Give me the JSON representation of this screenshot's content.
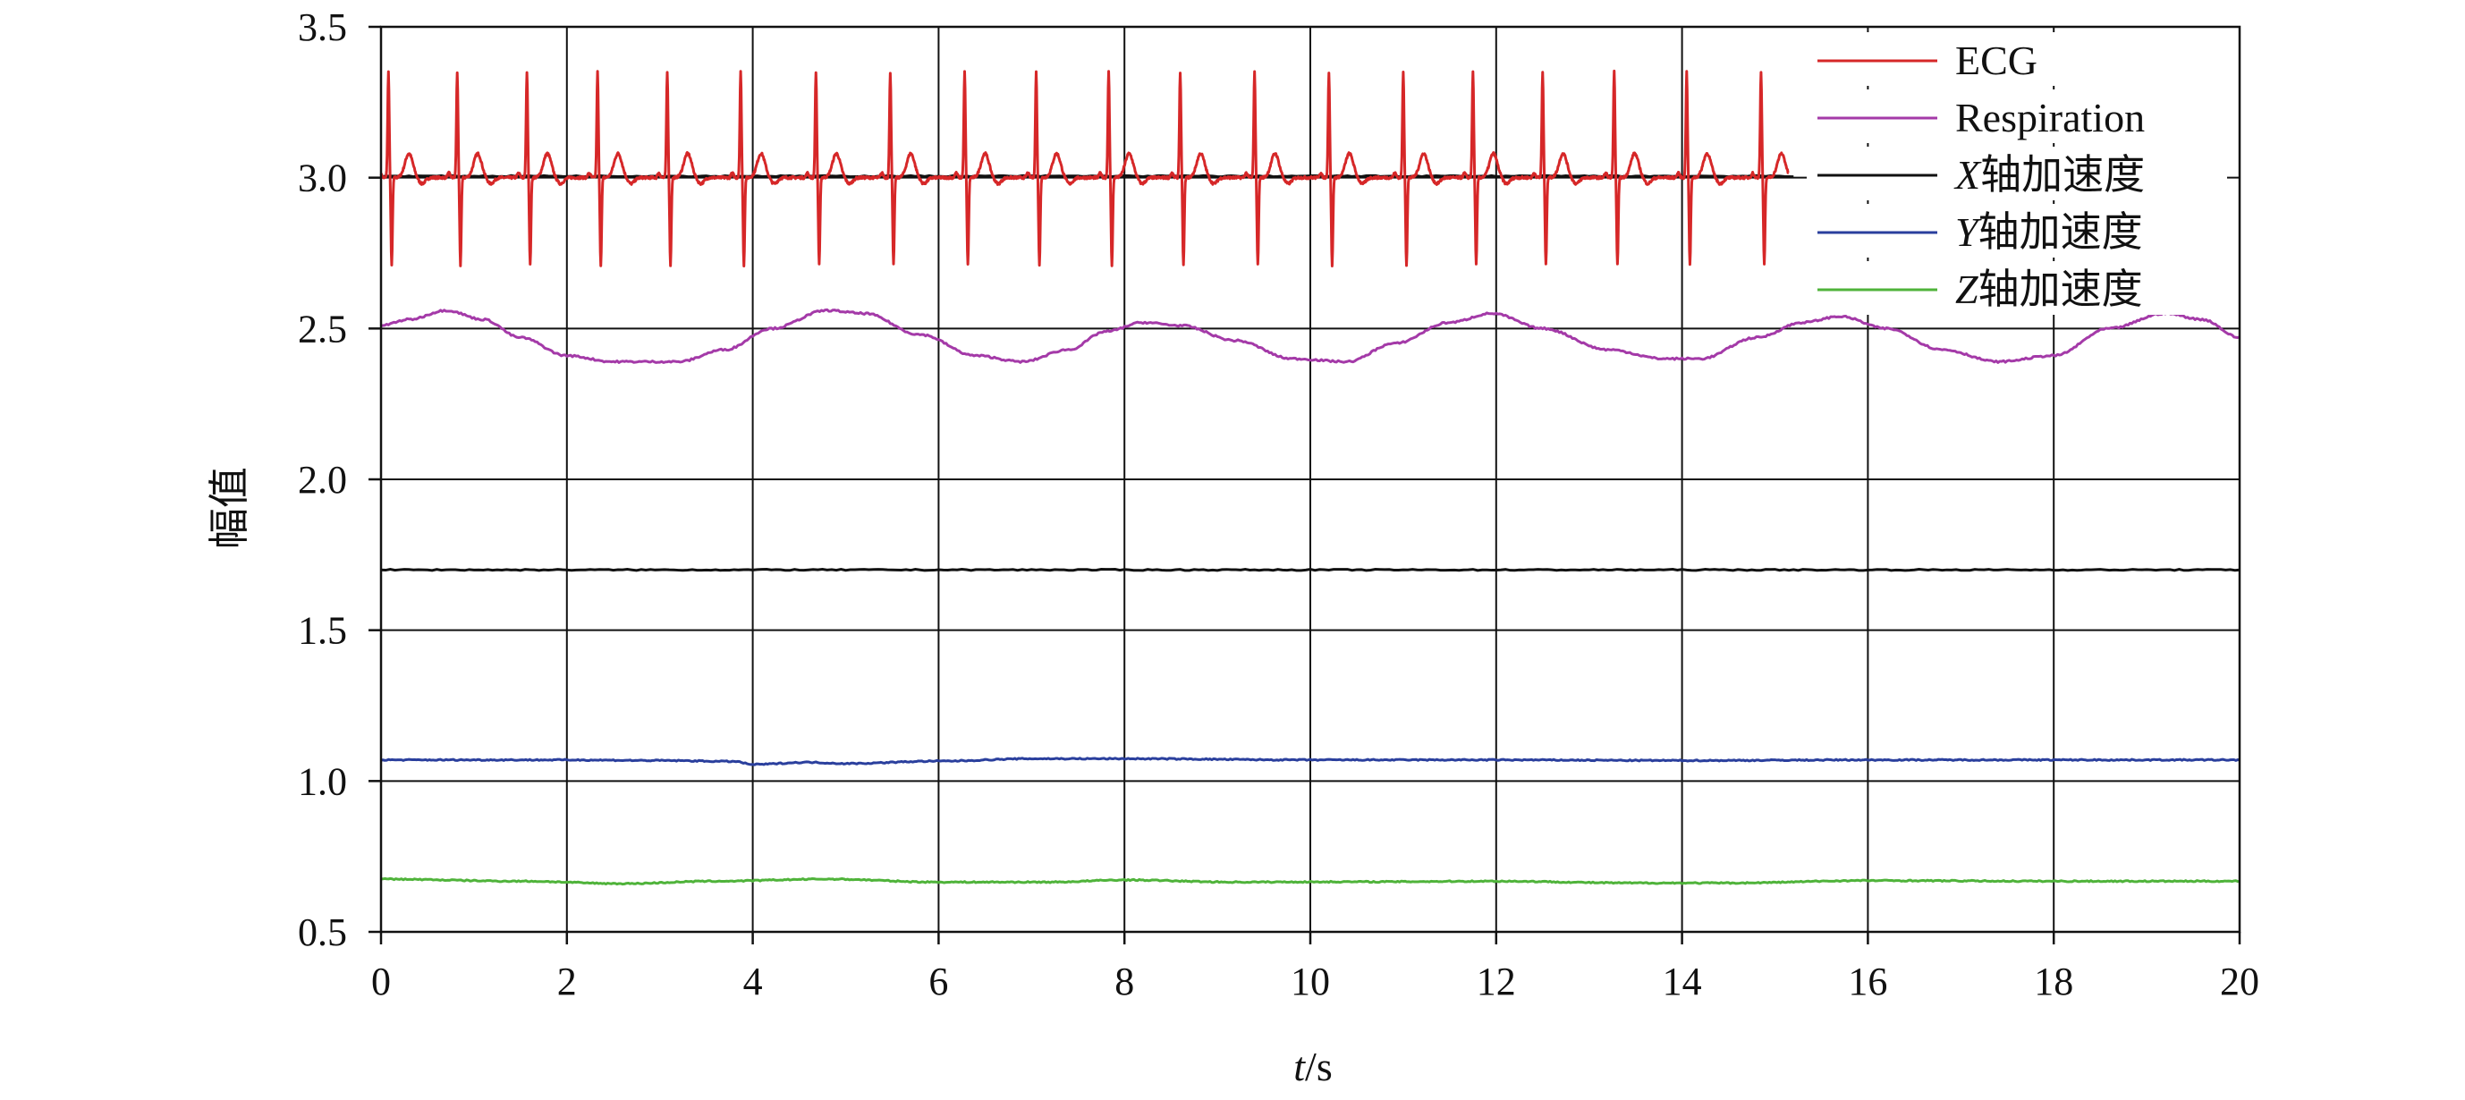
{
  "chart_data": {
    "type": "line",
    "title": "",
    "xlabel": {
      "var": "t",
      "unit": "/s"
    },
    "ylabel": "幅值",
    "xlim": [
      0,
      20
    ],
    "ylim": [
      0.5,
      3.5
    ],
    "xticks": [
      0,
      2,
      4,
      6,
      8,
      10,
      12,
      14,
      16,
      18,
      20
    ],
    "xtick_labels": [
      "0",
      "2",
      "4",
      "6",
      "8",
      "10",
      "12",
      "14",
      "16",
      "18",
      "20"
    ],
    "yticks": [
      0.5,
      1.0,
      1.5,
      2.0,
      2.5,
      3.0,
      3.5
    ],
    "ytick_labels": [
      "0.5",
      "1.0",
      "1.5",
      "2.0",
      "2.5",
      "3.0",
      "3.5"
    ],
    "grid": true,
    "legend_position": "top-right",
    "series": [
      {
        "name": "ECG",
        "legend_label": {
          "text": "ECG"
        },
        "color": "#d62728",
        "kind": "ecg",
        "baseline": 3.0,
        "t_end": 15.15,
        "beat_times": [
          0.08,
          0.82,
          1.57,
          2.33,
          3.08,
          3.87,
          4.68,
          5.48,
          6.28,
          7.05,
          7.83,
          8.6,
          9.4,
          10.2,
          11.0,
          11.75,
          12.5,
          13.27,
          14.05,
          14.85
        ],
        "r_peak": 3.35,
        "s_trough": 2.71,
        "t_wave": 3.08,
        "trough": 2.98,
        "stroke_width": 3
      },
      {
        "name": "Respiration",
        "legend_label": {
          "text": "Respiration"
        },
        "color": "#a43aa8",
        "kind": "keypoints",
        "points": [
          [
            0,
            2.51
          ],
          [
            0.3,
            2.53
          ],
          [
            0.7,
            2.56
          ],
          [
            1.1,
            2.53
          ],
          [
            1.5,
            2.47
          ],
          [
            2,
            2.41
          ],
          [
            2.5,
            2.39
          ],
          [
            3.2,
            2.39
          ],
          [
            3.7,
            2.43
          ],
          [
            4.2,
            2.5
          ],
          [
            4.8,
            2.56
          ],
          [
            5.2,
            2.55
          ],
          [
            5.8,
            2.48
          ],
          [
            6.4,
            2.41
          ],
          [
            6.9,
            2.39
          ],
          [
            7.4,
            2.43
          ],
          [
            7.8,
            2.49
          ],
          [
            8.2,
            2.52
          ],
          [
            8.6,
            2.51
          ],
          [
            9.2,
            2.46
          ],
          [
            9.8,
            2.4
          ],
          [
            10.4,
            2.39
          ],
          [
            10.9,
            2.45
          ],
          [
            11.5,
            2.52
          ],
          [
            11.95,
            2.55
          ],
          [
            12.5,
            2.5
          ],
          [
            13.2,
            2.43
          ],
          [
            13.8,
            2.4
          ],
          [
            14.2,
            2.4
          ],
          [
            14.8,
            2.47
          ],
          [
            15.3,
            2.52
          ],
          [
            15.7,
            2.54
          ],
          [
            16.2,
            2.5
          ],
          [
            16.8,
            2.43
          ],
          [
            17.4,
            2.39
          ],
          [
            18,
            2.41
          ],
          [
            18.6,
            2.5
          ],
          [
            19.2,
            2.55
          ],
          [
            19.6,
            2.53
          ],
          [
            20,
            2.47
          ]
        ],
        "stroke_width": 3
      },
      {
        "name": "X轴加速度",
        "legend_label": {
          "var": "X",
          "text": "轴加速度"
        },
        "color": "#111111",
        "kind": "flat",
        "segments": [
          {
            "t_start": 0,
            "t_end": 15.2,
            "value": 3.005
          },
          {
            "t_start": 0,
            "t_end": 20,
            "value": 1.7
          }
        ],
        "stroke_width": 3
      },
      {
        "name": "Y轴加速度",
        "legend_label": {
          "var": "Y",
          "text": "轴加速度"
        },
        "color": "#2a3f9d",
        "kind": "keypoints",
        "points": [
          [
            0,
            1.07
          ],
          [
            2,
            1.07
          ],
          [
            3.0,
            1.068
          ],
          [
            3.8,
            1.065
          ],
          [
            4.0,
            1.055
          ],
          [
            4.6,
            1.062
          ],
          [
            5.0,
            1.058
          ],
          [
            6.0,
            1.066
          ],
          [
            7.0,
            1.074
          ],
          [
            8.0,
            1.074
          ],
          [
            10.0,
            1.07
          ],
          [
            12.0,
            1.07
          ],
          [
            14.0,
            1.068
          ],
          [
            16.0,
            1.07
          ],
          [
            18.0,
            1.07
          ],
          [
            20,
            1.07
          ]
        ],
        "stroke_width": 3
      },
      {
        "name": "Z轴加速度",
        "legend_label": {
          "var": "Z",
          "text": "轴加速度"
        },
        "color": "#4fb33a",
        "kind": "keypoints",
        "points": [
          [
            0,
            0.675
          ],
          [
            1.5,
            0.668
          ],
          [
            2.6,
            0.66
          ],
          [
            3.6,
            0.668
          ],
          [
            4.8,
            0.675
          ],
          [
            6.0,
            0.665
          ],
          [
            7.2,
            0.665
          ],
          [
            8.0,
            0.672
          ],
          [
            9.2,
            0.665
          ],
          [
            10.5,
            0.666
          ],
          [
            12.0,
            0.668
          ],
          [
            13.5,
            0.662
          ],
          [
            14.5,
            0.662
          ],
          [
            16.0,
            0.67
          ],
          [
            18.0,
            0.668
          ],
          [
            20,
            0.668
          ]
        ],
        "stroke_width": 3
      }
    ]
  }
}
